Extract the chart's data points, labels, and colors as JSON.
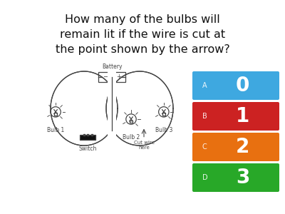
{
  "question": "How many of the bulbs will\nremain lit if the wire is cut at\nthe point shown by the arrow?",
  "question_fontsize": 11.5,
  "bg_color": "#ffffff",
  "options": [
    {
      "label": "A",
      "value": "0",
      "color": "#3ea8e0"
    },
    {
      "label": "B",
      "value": "1",
      "color": "#cc2222"
    },
    {
      "label": "C",
      "value": "2",
      "color": "#e87010"
    },
    {
      "label": "D",
      "value": "3",
      "color": "#28a828"
    }
  ],
  "diagram_color": "#444444",
  "diagram_lw": 0.9
}
